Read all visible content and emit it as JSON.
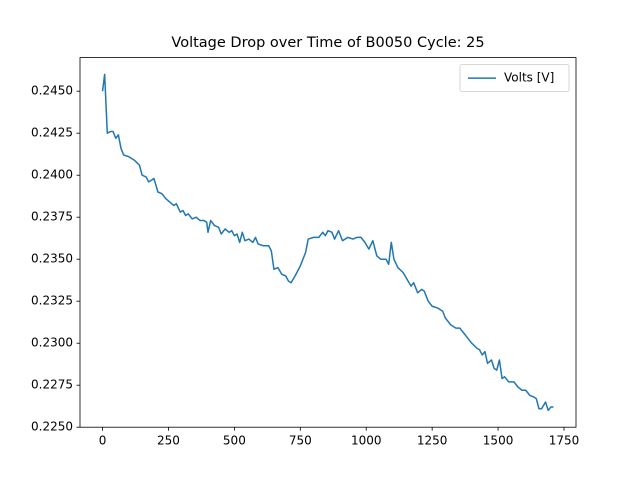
{
  "chart_data": {
    "type": "line",
    "title": "Voltage Drop over Time of B0050 Cycle: 25",
    "x": [
      0,
      8,
      18,
      30,
      40,
      50,
      60,
      70,
      80,
      100,
      120,
      140,
      150,
      165,
      175,
      185,
      195,
      210,
      225,
      240,
      255,
      270,
      280,
      295,
      305,
      315,
      325,
      340,
      355,
      370,
      385,
      395,
      400,
      410,
      425,
      440,
      450,
      465,
      480,
      490,
      500,
      510,
      520,
      530,
      540,
      555,
      570,
      580,
      590,
      610,
      630,
      640,
      650,
      665,
      680,
      695,
      705,
      715,
      730,
      750,
      770,
      780,
      800,
      820,
      835,
      845,
      855,
      870,
      880,
      895,
      910,
      930,
      950,
      965,
      980,
      995,
      1010,
      1025,
      1040,
      1055,
      1075,
      1085,
      1095,
      1105,
      1120,
      1140,
      1155,
      1170,
      1180,
      1195,
      1210,
      1220,
      1235,
      1250,
      1270,
      1290,
      1300,
      1320,
      1340,
      1355,
      1370,
      1385,
      1400,
      1420,
      1430,
      1440,
      1450,
      1460,
      1475,
      1485,
      1495,
      1505,
      1515,
      1525,
      1540,
      1560,
      1575,
      1590,
      1605,
      1620,
      1635,
      1645,
      1655,
      1665,
      1680,
      1690,
      1700,
      1710
    ],
    "series": [
      {
        "name": "Volts [V]",
        "color": "#1f77b4",
        "values": [
          0.245,
          0.246,
          0.2425,
          0.2426,
          0.2426,
          0.2422,
          0.2424,
          0.2416,
          0.2412,
          0.2411,
          0.2409,
          0.2406,
          0.24,
          0.2399,
          0.2396,
          0.2397,
          0.2398,
          0.239,
          0.2389,
          0.2386,
          0.2384,
          0.2382,
          0.2383,
          0.2378,
          0.2379,
          0.2376,
          0.2377,
          0.2374,
          0.2375,
          0.2373,
          0.2373,
          0.2372,
          0.2366,
          0.2373,
          0.237,
          0.2369,
          0.2365,
          0.2368,
          0.2366,
          0.2367,
          0.2364,
          0.2365,
          0.236,
          0.2366,
          0.2361,
          0.2362,
          0.236,
          0.2363,
          0.2359,
          0.2358,
          0.2358,
          0.2355,
          0.2344,
          0.2345,
          0.2341,
          0.234,
          0.2337,
          0.2336,
          0.234,
          0.2346,
          0.2354,
          0.2362,
          0.2363,
          0.2363,
          0.2366,
          0.2364,
          0.2367,
          0.2366,
          0.2362,
          0.2367,
          0.2361,
          0.2363,
          0.2362,
          0.2363,
          0.2363,
          0.236,
          0.2356,
          0.2361,
          0.2352,
          0.235,
          0.235,
          0.2347,
          0.236,
          0.235,
          0.2345,
          0.2342,
          0.2338,
          0.2334,
          0.2336,
          0.233,
          0.2332,
          0.2331,
          0.2325,
          0.2322,
          0.2321,
          0.2319,
          0.2315,
          0.2311,
          0.2309,
          0.2309,
          0.2306,
          0.2303,
          0.23,
          0.2297,
          0.2296,
          0.2293,
          0.2295,
          0.2288,
          0.229,
          0.2285,
          0.2284,
          0.229,
          0.2279,
          0.228,
          0.2277,
          0.2277,
          0.2274,
          0.2272,
          0.2272,
          0.2269,
          0.2268,
          0.2267,
          0.2261,
          0.2261,
          0.2265,
          0.226,
          0.2262,
          0.2262
        ]
      }
    ],
    "xlim": [
      -85.5,
      1795.5
    ],
    "ylim": [
      0.225,
      0.247
    ],
    "xticks": [
      0,
      250,
      500,
      750,
      1000,
      1250,
      1500,
      1750
    ],
    "yticks": [
      {
        "value": 0.225,
        "label": "0.2250"
      },
      0.2275,
      {
        "value": 0.23,
        "label": "0.2300"
      },
      0.2325,
      {
        "value": 0.235,
        "label": "0.2350"
      },
      0.2375,
      {
        "value": 0.24,
        "label": "0.2400"
      },
      0.2425,
      {
        "value": 0.245,
        "label": "0.2450"
      }
    ],
    "legend": "upper right"
  }
}
